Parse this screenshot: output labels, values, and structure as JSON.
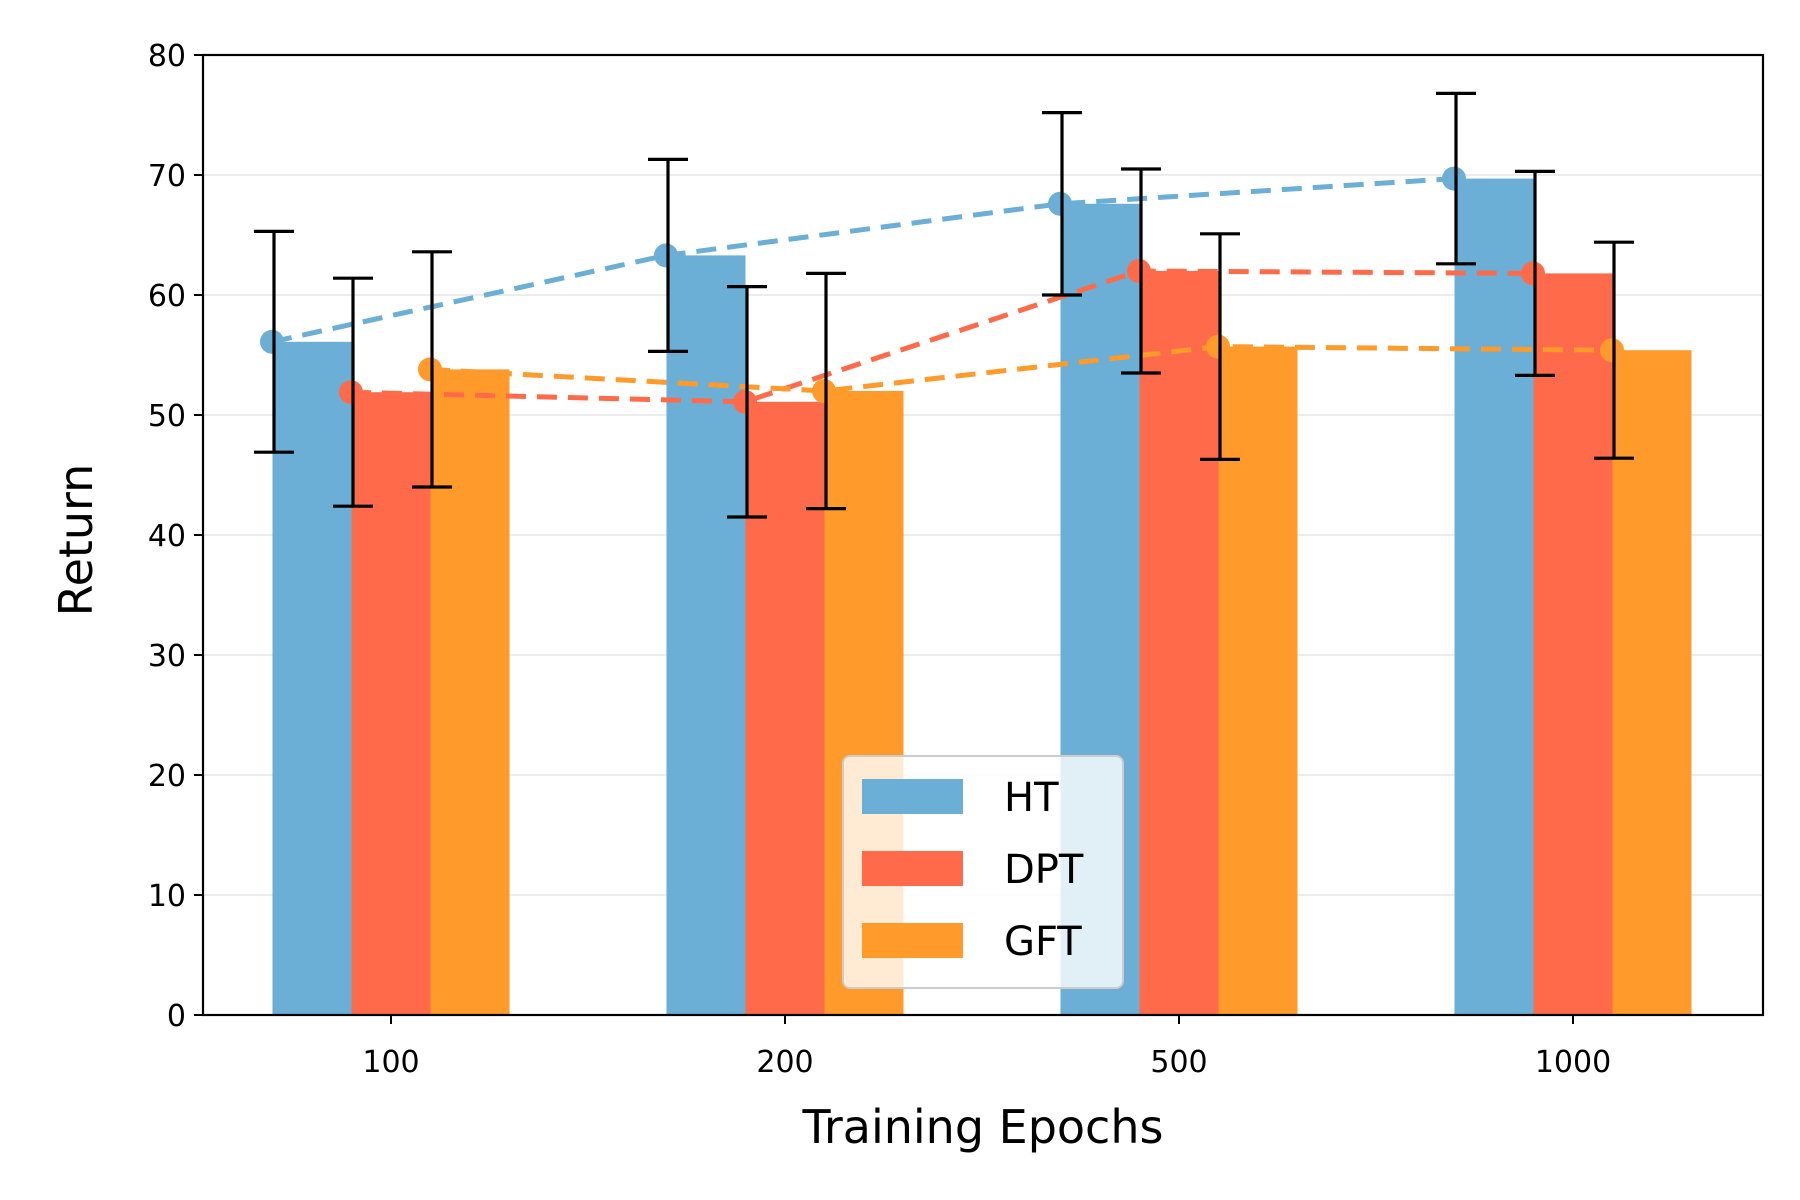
{
  "chart_data": {
    "type": "bar",
    "title": "",
    "xlabel": "Training Epochs",
    "ylabel": "Return",
    "categories": [
      "100",
      "200",
      "500",
      "1000"
    ],
    "ylim": [
      0,
      80
    ],
    "yticks": [
      0,
      10,
      20,
      30,
      40,
      50,
      60,
      70,
      80
    ],
    "grid": "horizontal",
    "legend_position": "bottom-center",
    "series": [
      {
        "name": "HT",
        "color": "#6BAED6",
        "values": [
          56.1,
          63.3,
          67.6,
          69.7
        ],
        "errors": [
          9.2,
          8.0,
          7.6,
          7.1
        ]
      },
      {
        "name": "DPT",
        "color": "#FF6B4A",
        "values": [
          51.9,
          51.1,
          62.0,
          61.8
        ],
        "errors": [
          9.5,
          9.6,
          8.5,
          8.5
        ]
      },
      {
        "name": "GFT",
        "color": "#FF9A2B",
        "values": [
          53.8,
          52.0,
          55.7,
          55.4
        ],
        "errors": [
          9.8,
          9.8,
          9.4,
          9.0
        ]
      }
    ],
    "trend_lines": "dashed lines connecting series means"
  }
}
